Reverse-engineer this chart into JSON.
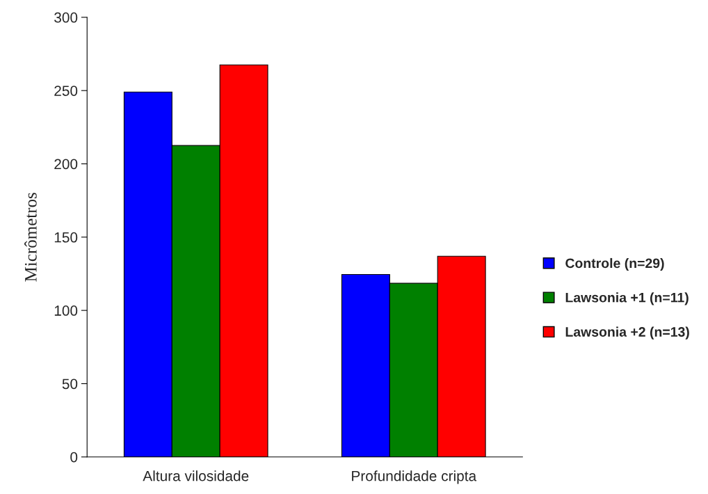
{
  "chart_data": {
    "type": "bar",
    "ylabel": "Micrômetros",
    "categories": [
      "Altura vilosidade",
      "Profundidade cripta"
    ],
    "series": [
      {
        "name": "Controle (n=29)",
        "color": "#0000ff",
        "values": [
          249,
          124.5
        ]
      },
      {
        "name": "Lawsonia +1 (n=11)",
        "color": "#008000",
        "values": [
          212.5,
          118.5
        ]
      },
      {
        "name": "Lawsonia +2 (n=13)",
        "color": "#ff0000",
        "values": [
          267.5,
          137
        ]
      }
    ],
    "ylim": [
      0,
      300
    ],
    "yticks": [
      0,
      50,
      100,
      150,
      200,
      250,
      300
    ],
    "grid": false,
    "legend": "right"
  }
}
